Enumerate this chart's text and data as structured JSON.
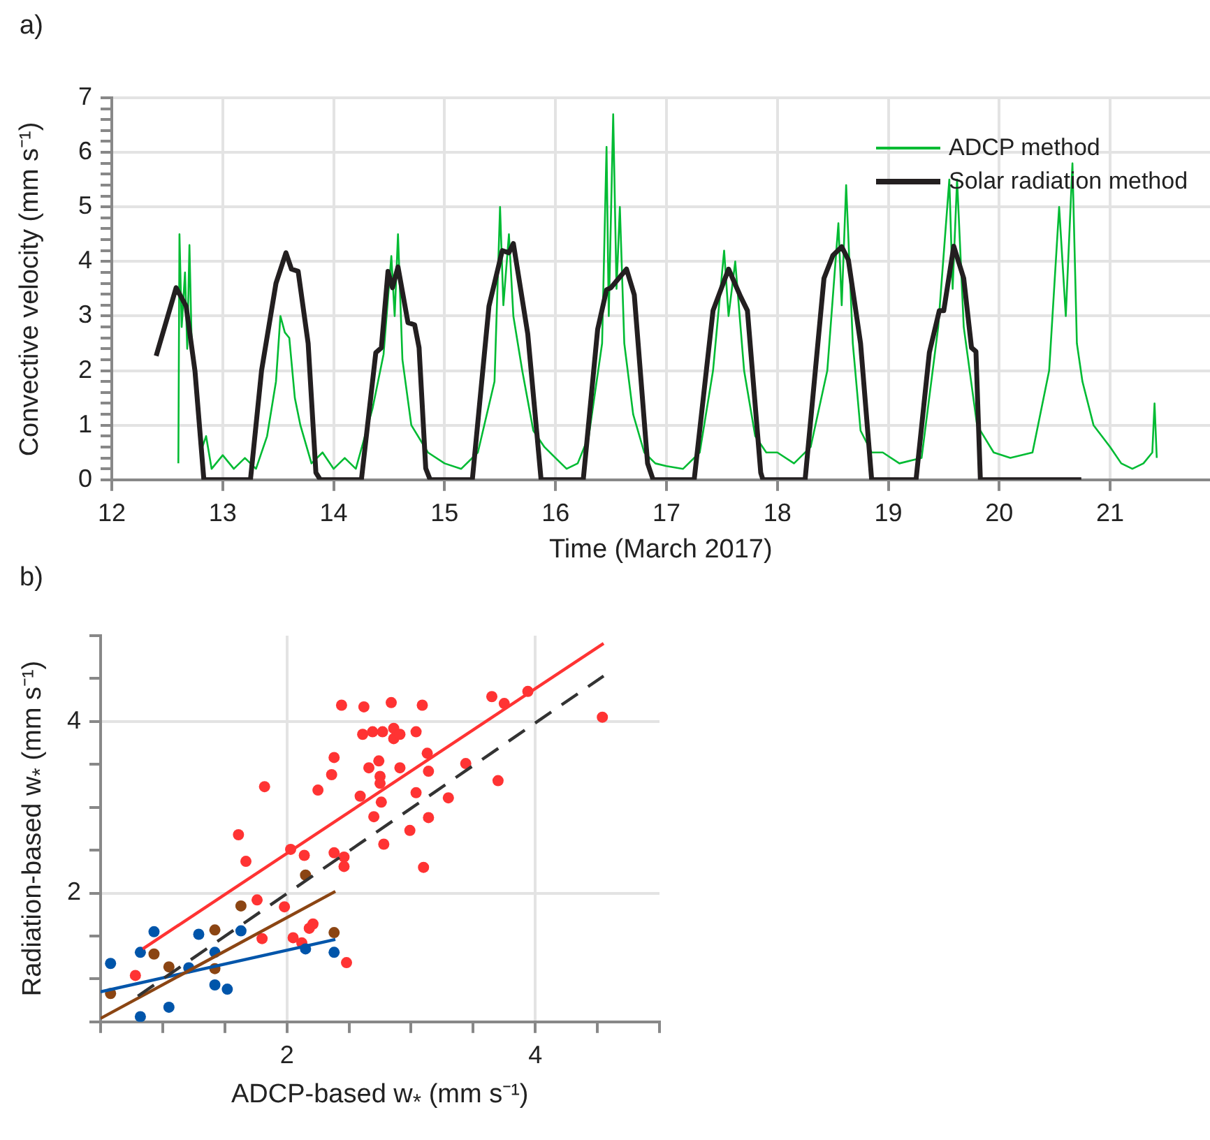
{
  "chart_data": [
    {
      "type": "line",
      "title": "a)",
      "xlabel": "Time (March 2017)",
      "ylabel": "Convective velocity (mm s⁻¹)",
      "xlim": [
        12,
        21.9
      ],
      "xticks": [
        12,
        13,
        14,
        15,
        16,
        17,
        18,
        19,
        20,
        21
      ],
      "ylim": [
        0,
        7
      ],
      "yticks": [
        0,
        {
          "value": 0.2,
          "label": null
        },
        {
          "value": 0.4,
          "label": null
        },
        {
          "value": 0.6,
          "label": null
        },
        {
          "value": 0.8,
          "label": null
        },
        1,
        {
          "value": 1.2,
          "label": null
        },
        {
          "value": 1.4,
          "label": null
        },
        {
          "value": 1.6,
          "label": null
        },
        {
          "value": 1.8,
          "label": null
        },
        2,
        {
          "value": 2.2,
          "label": null
        },
        {
          "value": 2.4,
          "label": null
        },
        {
          "value": 2.6,
          "label": null
        },
        {
          "value": 2.8,
          "label": null
        },
        3,
        {
          "value": 3.2,
          "label": null
        },
        {
          "value": 3.4,
          "label": null
        },
        {
          "value": 3.6,
          "label": null
        },
        {
          "value": 3.8,
          "label": null
        },
        4,
        {
          "value": 4.2,
          "label": null
        },
        {
          "value": 4.4,
          "label": null
        },
        {
          "value": 4.6,
          "label": null
        },
        {
          "value": 4.8,
          "label": null
        },
        5,
        {
          "value": 5.2,
          "label": null
        },
        {
          "value": 5.4,
          "label": null
        },
        {
          "value": 5.6,
          "label": null
        },
        {
          "value": 5.8,
          "label": null
        },
        6,
        {
          "value": 6.2,
          "label": null
        },
        {
          "value": 6.4,
          "label": null
        },
        {
          "value": 6.6,
          "label": null
        },
        {
          "value": 6.8,
          "label": null
        },
        7
      ],
      "grid": true,
      "legend": "top right",
      "series": [
        {
          "name": "ADCP method",
          "color": "#00bb33",
          "x": [
            12.6,
            12.61,
            12.63,
            12.66,
            12.68,
            12.7,
            12.72,
            12.76,
            12.8,
            12.85,
            12.9,
            13.0,
            13.1,
            13.2,
            13.3,
            13.4,
            13.48,
            13.52,
            13.56,
            13.6,
            13.65,
            13.7,
            13.8,
            13.9,
            14.0,
            14.1,
            14.2,
            14.35,
            14.45,
            14.52,
            14.55,
            14.58,
            14.62,
            14.7,
            14.85,
            15.0,
            15.15,
            15.3,
            15.45,
            15.5,
            15.53,
            15.58,
            15.62,
            15.7,
            15.8,
            15.9,
            16.0,
            16.1,
            16.2,
            16.3,
            16.42,
            16.46,
            16.48,
            16.52,
            16.55,
            16.58,
            16.62,
            16.7,
            16.8,
            16.9,
            17.0,
            17.15,
            17.3,
            17.42,
            17.52,
            17.56,
            17.62,
            17.7,
            17.8,
            17.9,
            18.0,
            18.15,
            18.3,
            18.45,
            18.55,
            18.58,
            18.62,
            18.68,
            18.75,
            18.85,
            18.95,
            19.1,
            19.3,
            19.45,
            19.55,
            19.58,
            19.62,
            19.68,
            19.8,
            19.95,
            20.1,
            20.3,
            20.45,
            20.54,
            20.6,
            20.66,
            20.7,
            20.75,
            20.85,
            21.0,
            21.1,
            21.2,
            21.3,
            21.38,
            21.4,
            21.42
          ],
          "values": [
            0.3,
            4.5,
            2.8,
            3.8,
            2.4,
            4.3,
            2.5,
            1.5,
            0.5,
            0.8,
            0.2,
            0.45,
            0.2,
            0.4,
            0.2,
            0.8,
            1.8,
            3.0,
            2.7,
            2.6,
            1.5,
            1.0,
            0.3,
            0.5,
            0.2,
            0.4,
            0.2,
            1.3,
            2.3,
            4.1,
            3.0,
            4.5,
            2.2,
            1.0,
            0.5,
            0.3,
            0.2,
            0.5,
            1.8,
            5.0,
            3.2,
            4.5,
            3.0,
            2.0,
            0.9,
            0.6,
            0.4,
            0.2,
            0.3,
            0.8,
            2.5,
            6.1,
            3.0,
            6.7,
            3.5,
            5.0,
            2.5,
            1.2,
            0.5,
            0.3,
            0.25,
            0.2,
            0.5,
            2.0,
            4.2,
            3.0,
            4.0,
            2.0,
            0.8,
            0.5,
            0.5,
            0.3,
            0.6,
            2.0,
            4.7,
            3.2,
            5.4,
            2.5,
            0.9,
            0.5,
            0.5,
            0.3,
            0.4,
            2.8,
            5.5,
            3.5,
            5.5,
            2.8,
            1.0,
            0.5,
            0.4,
            0.5,
            2.0,
            5.0,
            3.0,
            5.8,
            2.5,
            1.8,
            1.0,
            0.6,
            0.3,
            0.2,
            0.3,
            0.5,
            1.4,
            0.4
          ]
        },
        {
          "name": "Solar radiation method",
          "color": "#231f20",
          "x": [
            12.4,
            12.58,
            12.67,
            12.75,
            12.83,
            13.25,
            13.35,
            13.48,
            13.57,
            13.62,
            13.68,
            13.77,
            13.84,
            13.88,
            14.25,
            14.38,
            14.43,
            14.49,
            14.53,
            14.58,
            14.67,
            14.73,
            14.77,
            14.83,
            14.87,
            15.25,
            15.4,
            15.52,
            15.58,
            15.62,
            15.75,
            15.87,
            16.25,
            16.38,
            16.46,
            16.5,
            16.64,
            16.71,
            16.83,
            16.88,
            17.25,
            17.42,
            17.56,
            17.67,
            17.73,
            17.85,
            17.87,
            18.25,
            18.42,
            18.5,
            18.58,
            18.64,
            18.75,
            18.85,
            19.25,
            19.37,
            19.46,
            19.5,
            19.59,
            19.68,
            19.75,
            19.79,
            19.83,
            20.74
          ],
          "values": [
            2.27,
            3.52,
            3.18,
            1.99,
            0,
            0,
            2.0,
            3.6,
            4.16,
            3.86,
            3.82,
            2.5,
            0.13,
            0,
            0,
            2.33,
            2.42,
            3.82,
            3.52,
            3.9,
            2.88,
            2.84,
            2.42,
            0.21,
            0,
            0,
            3.18,
            4.2,
            4.16,
            4.33,
            2.67,
            0,
            0,
            2.76,
            3.48,
            3.52,
            3.86,
            3.39,
            0.3,
            0,
            0,
            3.1,
            3.86,
            3.35,
            3.1,
            0.13,
            0,
            0,
            3.69,
            4.11,
            4.27,
            4.03,
            2.5,
            0,
            0,
            2.33,
            3.1,
            3.1,
            4.28,
            3.69,
            2.42,
            2.35,
            0,
            0
          ]
        }
      ]
    },
    {
      "type": "scatter",
      "title": "b)",
      "xlabel": "ADCP-based w$_{*}$ (mm s⁻¹)",
      "ylabel": "Radiation-based w$_{*}$ (mm s⁻¹)",
      "marker": "circle",
      "grid": true,
      "xlim": [
        0.5,
        5
      ],
      "xticks": [
        {
          "value": 0.5,
          "label": null
        },
        {
          "value": 1,
          "label": null
        },
        {
          "value": 1.5,
          "label": null
        },
        2,
        {
          "value": 2.5,
          "label": null
        },
        {
          "value": 3,
          "label": null
        },
        {
          "value": 3.5,
          "label": null
        },
        4,
        {
          "value": 4.5,
          "label": null
        },
        {
          "value": 5,
          "label": null
        }
      ],
      "ylim": [
        0.5,
        5
      ],
      "yticks": [
        {
          "value": 0.5,
          "label": null
        },
        {
          "value": 1,
          "label": null
        },
        {
          "value": 1.5,
          "label": null
        },
        2,
        {
          "value": 2.5,
          "label": null
        },
        {
          "value": 3,
          "label": null
        },
        {
          "value": 3.5,
          "label": null
        },
        4,
        {
          "value": 4.5,
          "label": null
        },
        {
          "value": 5,
          "label": null
        }
      ],
      "series": [
        {
          "color": "#ff3333",
          "x": [
            2.44,
            2.62,
            2.84,
            3.09,
            3.65,
            3.75,
            3.94,
            4.54,
            2.61,
            2.69,
            2.77,
            2.86,
            2.86,
            2.91,
            3.04,
            3.13,
            2.38,
            2.36,
            2.66,
            2.74,
            2.91,
            3.14,
            3.44,
            2.75,
            2.75,
            2.25,
            1.82,
            2.59,
            2.76,
            3.04,
            3.3,
            3.7,
            2.7,
            3.14,
            2.99,
            2.78,
            3.1,
            1.61,
            2.03,
            2.14,
            2.38,
            2.46,
            2.46,
            1.67,
            1.76,
            1.98,
            1.8,
            2.05,
            2.12,
            2.18,
            2.21,
            2.48,
            0.78
          ],
          "values": [
            4.19,
            4.17,
            4.22,
            4.19,
            4.29,
            4.21,
            4.35,
            4.05,
            3.85,
            3.88,
            3.88,
            3.92,
            3.8,
            3.85,
            3.88,
            3.63,
            3.58,
            3.38,
            3.46,
            3.54,
            3.46,
            3.42,
            3.51,
            3.36,
            3.28,
            3.2,
            3.24,
            3.13,
            3.06,
            3.17,
            3.11,
            3.31,
            2.89,
            2.88,
            2.73,
            2.57,
            2.3,
            2.68,
            2.51,
            2.44,
            2.47,
            2.42,
            2.31,
            2.37,
            1.92,
            1.84,
            1.47,
            1.48,
            1.42,
            1.59,
            1.64,
            1.19,
            1.04
          ]
        },
        {
          "color": "#0055aa",
          "x": [
            0.58,
            0.82,
            0.93,
            1.05,
            0.82,
            1.29,
            1.42,
            1.42,
            1.52,
            1.63,
            2.15,
            2.38,
            1.21
          ],
          "values": [
            1.18,
            1.31,
            1.55,
            0.67,
            0.56,
            1.52,
            1.31,
            0.93,
            0.88,
            1.56,
            1.35,
            1.31,
            1.13
          ]
        },
        {
          "color": "#8b4513",
          "x": [
            0.58,
            0.93,
            1.05,
            1.42,
            1.42,
            1.63,
            2.15,
            2.38
          ],
          "values": [
            0.83,
            1.29,
            1.14,
            1.57,
            1.12,
            1.85,
            2.21,
            1.54
          ]
        },
        {
          "type": "line",
          "marker": "none",
          "color": "#ff3333",
          "x": [
            0.84,
            4.55
          ],
          "values": [
            1.35,
            4.91
          ]
        },
        {
          "type": "line",
          "marker": "none",
          "color": "#0055aa",
          "x": [
            0.5,
            2.39
          ],
          "values": [
            0.85,
            1.46
          ]
        },
        {
          "type": "line",
          "marker": "none",
          "color": "#8b4513",
          "x": [
            0.5,
            2.39
          ],
          "values": [
            0.54,
            2.02
          ]
        },
        {
          "type": "line",
          "marker": "none",
          "color": "#333333",
          "line_style": "dashed",
          "x": [
            0.8,
            4.55
          ],
          "values": [
            0.8,
            4.53
          ]
        }
      ]
    }
  ]
}
